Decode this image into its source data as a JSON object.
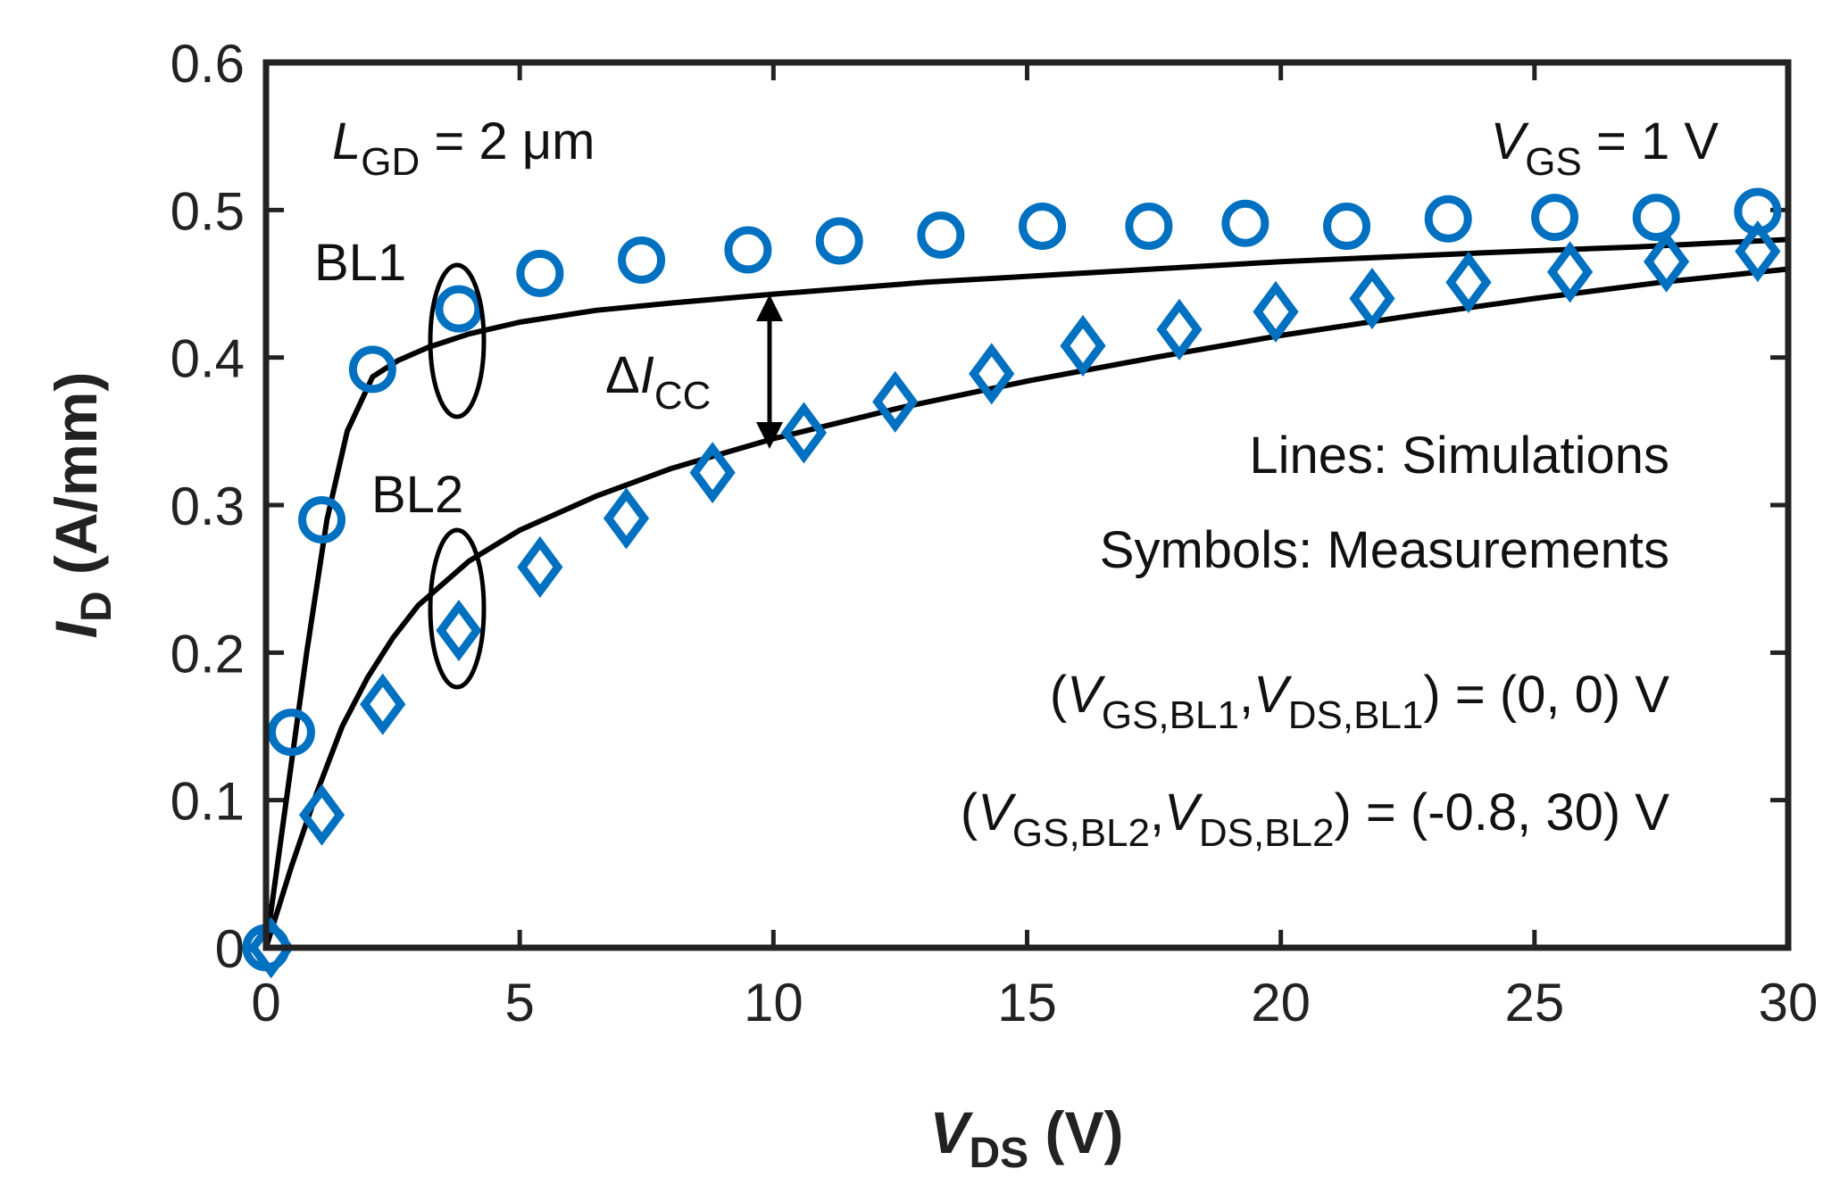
{
  "chart_data": {
    "type": "scatter",
    "title": "",
    "xlabel": {
      "main": "V",
      "sub": "DS",
      "unit": " (V)"
    },
    "ylabel": {
      "main": "I",
      "sub": "D",
      "unit": " (A/mm)"
    },
    "xlim": [
      0,
      30
    ],
    "ylim": [
      0,
      0.6
    ],
    "xticks": [
      0,
      5,
      10,
      15,
      20,
      25,
      30
    ],
    "yticks": [
      0,
      0.1,
      0.2,
      0.3,
      0.4,
      0.5,
      0.6
    ],
    "xtick_labels": [
      "0",
      "5",
      "10",
      "15",
      "20",
      "25",
      "30"
    ],
    "ytick_labels": [
      "0",
      "0.1",
      "0.2",
      "0.3",
      "0.4",
      "0.5",
      "0.6"
    ],
    "grid": false,
    "series": [
      {
        "name": "BL1 measurement",
        "marker": "circle",
        "color": "#0070c0",
        "points": [
          [
            0,
            0
          ],
          [
            0.5,
            0.146
          ],
          [
            1.1,
            0.29
          ],
          [
            2.1,
            0.392
          ],
          [
            3.8,
            0.433
          ],
          [
            5.4,
            0.457
          ],
          [
            7.4,
            0.466
          ],
          [
            9.5,
            0.473
          ],
          [
            11.3,
            0.479
          ],
          [
            13.3,
            0.483
          ],
          [
            15.3,
            0.489
          ],
          [
            17.4,
            0.489
          ],
          [
            19.3,
            0.491
          ],
          [
            21.3,
            0.489
          ],
          [
            23.3,
            0.494
          ],
          [
            25.4,
            0.495
          ],
          [
            27.4,
            0.495
          ],
          [
            29.4,
            0.499
          ]
        ]
      },
      {
        "name": "BL2 measurement",
        "marker": "diamond",
        "color": "#0070c0",
        "points": [
          [
            0.1,
            0
          ],
          [
            1.1,
            0.09
          ],
          [
            2.3,
            0.165
          ],
          [
            3.8,
            0.215
          ],
          [
            5.4,
            0.258
          ],
          [
            7.1,
            0.291
          ],
          [
            8.8,
            0.322
          ],
          [
            10.6,
            0.349
          ],
          [
            12.4,
            0.37
          ],
          [
            14.3,
            0.389
          ],
          [
            16.1,
            0.408
          ],
          [
            18.0,
            0.419
          ],
          [
            19.9,
            0.431
          ],
          [
            21.8,
            0.44
          ],
          [
            23.7,
            0.451
          ],
          [
            25.7,
            0.458
          ],
          [
            27.6,
            0.465
          ],
          [
            29.4,
            0.472
          ]
        ]
      },
      {
        "name": "BL1 simulation",
        "marker": "line",
        "color": "#000000",
        "points": [
          [
            0,
            0
          ],
          [
            0.4,
            0.1
          ],
          [
            0.8,
            0.2
          ],
          [
            1.2,
            0.29
          ],
          [
            1.6,
            0.35
          ],
          [
            2.1,
            0.387
          ],
          [
            2.6,
            0.398
          ],
          [
            3.2,
            0.407
          ],
          [
            4.0,
            0.416
          ],
          [
            5.0,
            0.424
          ],
          [
            6.5,
            0.432
          ],
          [
            8.0,
            0.437
          ],
          [
            10.0,
            0.443
          ],
          [
            13.0,
            0.451
          ],
          [
            16.0,
            0.457
          ],
          [
            20.0,
            0.465
          ],
          [
            24.0,
            0.471
          ],
          [
            27.0,
            0.475
          ],
          [
            30.0,
            0.48
          ]
        ]
      },
      {
        "name": "BL2 simulation",
        "marker": "line",
        "color": "#000000",
        "points": [
          [
            0,
            0
          ],
          [
            0.5,
            0.055
          ],
          [
            1.0,
            0.105
          ],
          [
            1.5,
            0.15
          ],
          [
            2.0,
            0.183
          ],
          [
            2.5,
            0.21
          ],
          [
            3.0,
            0.232
          ],
          [
            4.0,
            0.262
          ],
          [
            5.0,
            0.283
          ],
          [
            6.5,
            0.306
          ],
          [
            8.0,
            0.325
          ],
          [
            10.0,
            0.345
          ],
          [
            12.5,
            0.366
          ],
          [
            15.0,
            0.384
          ],
          [
            17.5,
            0.4
          ],
          [
            20.0,
            0.415
          ],
          [
            22.5,
            0.428
          ],
          [
            25.0,
            0.44
          ],
          [
            27.5,
            0.451
          ],
          [
            30.0,
            0.46
          ]
        ]
      }
    ],
    "annotations": {
      "lgd": {
        "main": "L",
        "sub": "GD",
        "rest": " = 2 μm"
      },
      "vgs": {
        "main": "V",
        "sub": "GS",
        "rest": " = 1 V"
      },
      "bl1": "BL1",
      "bl2": "BL2",
      "delta_icc": {
        "delta": "Δ",
        "main": "I",
        "sub": "CC"
      },
      "lines_note": "Lines: Simulations",
      "symbols_note": "Symbols: Measurements",
      "bias1": {
        "open": "(",
        "v1": "V",
        "s1": "GS,BL1",
        "comma": ",",
        "v2": "V",
        "s2": "DS,BL1",
        "close": ") = (0, 0) V"
      },
      "bias2": {
        "open": "(",
        "v1": "V",
        "s1": "GS,BL2",
        "comma": ",",
        "v2": "V",
        "s2": "DS,BL2",
        "close": ") = (-0.8, 30) V"
      }
    }
  }
}
